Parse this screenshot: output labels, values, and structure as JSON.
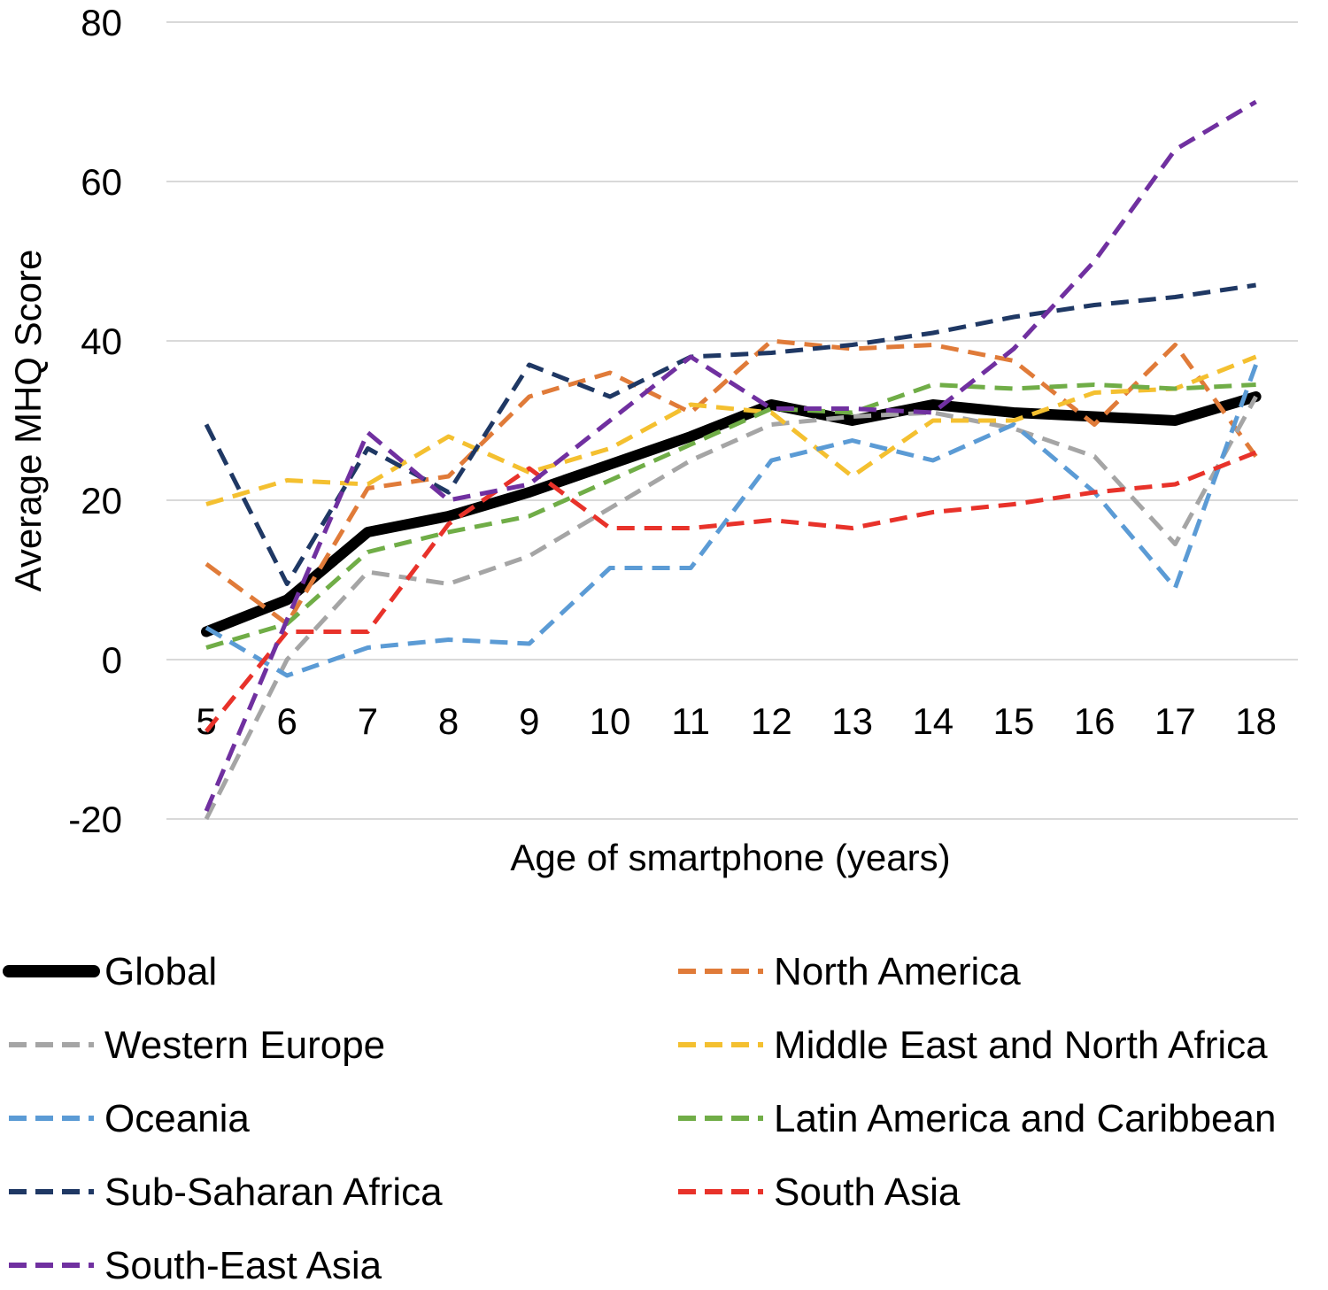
{
  "chart_data": {
    "type": "line",
    "title": "",
    "xlabel": "Age of smartphone (years)",
    "ylabel": "Average MHQ Score",
    "categories": [
      "5",
      "6",
      "7",
      "8",
      "9",
      "10",
      "11",
      "12",
      "13",
      "14",
      "15",
      "16",
      "17",
      "18"
    ],
    "ylim": [
      -20,
      80
    ],
    "yticks": [
      -20,
      0,
      20,
      40,
      60,
      80
    ],
    "grid": true,
    "legend_position": "bottom",
    "series": [
      {
        "name": "Global",
        "color": "#000000",
        "style": "solid",
        "values": [
          3.5,
          7.5,
          16,
          18,
          21,
          24.5,
          28,
          32,
          30,
          32,
          31,
          30.5,
          30,
          33
        ]
      },
      {
        "name": "North America",
        "color": "#E07B39",
        "style": "dashed",
        "values": [
          12,
          4.5,
          21.5,
          23,
          33,
          36,
          31,
          40,
          39,
          39.5,
          37.5,
          29.5,
          39.5,
          25.5
        ]
      },
      {
        "name": "Western Europe",
        "color": "#A5A5A5",
        "style": "dashed",
        "values": [
          -20,
          0,
          11,
          9.5,
          13,
          19,
          25,
          29.5,
          30.5,
          31,
          29,
          25.5,
          14.5,
          33
        ]
      },
      {
        "name": "Middle East and North Africa",
        "color": "#F4C030",
        "style": "dashed",
        "values": [
          19.5,
          22.5,
          22,
          28,
          23.5,
          26.5,
          32,
          31,
          23,
          30,
          30,
          33.5,
          34,
          38
        ]
      },
      {
        "name": "Oceania",
        "color": "#5B9BD5",
        "style": "dashed",
        "values": [
          4,
          -2,
          1.5,
          2.5,
          2,
          11.5,
          11.5,
          25,
          27.5,
          25,
          29.5,
          21,
          9,
          37
        ]
      },
      {
        "name": "Latin America and Caribbean",
        "color": "#70AD47",
        "style": "dashed",
        "values": [
          1.5,
          4.5,
          13.5,
          16,
          18,
          22.5,
          27,
          31.5,
          31,
          34.5,
          34,
          34.5,
          34,
          34.5
        ]
      },
      {
        "name": "Sub-Saharan Africa",
        "color": "#1F3864",
        "style": "dashed",
        "values": [
          29.5,
          9.5,
          26.5,
          21,
          37,
          33,
          38,
          38.5,
          39.5,
          41,
          43,
          44.5,
          45.5,
          47
        ]
      },
      {
        "name": "South Asia",
        "color": "#E8322A",
        "style": "dashed",
        "values": [
          -9,
          3.5,
          3.5,
          17,
          24,
          16.5,
          16.5,
          17.5,
          16.5,
          18.5,
          19.5,
          21,
          22,
          26
        ]
      },
      {
        "name": "South-East Asia",
        "color": "#7030A0",
        "style": "dashed",
        "values": [
          -19,
          5,
          28.5,
          20,
          22,
          30,
          38,
          31.5,
          31.5,
          31,
          39,
          50,
          64,
          70
        ]
      }
    ]
  }
}
